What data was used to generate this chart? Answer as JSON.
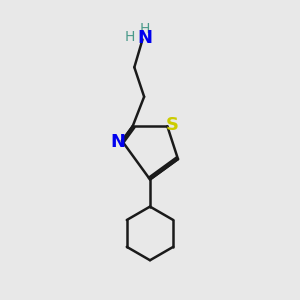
{
  "background_color": "#e8e8e8",
  "bond_color": "#1a1a1a",
  "N_color": "#0000ee",
  "S_color": "#cccc00",
  "H_color": "#4a9a8a",
  "line_width": 1.8,
  "figsize": [
    3.0,
    3.0
  ],
  "dpi": 100,
  "xlim": [
    3.0,
    7.0
  ],
  "ylim": [
    0.5,
    9.5
  ]
}
